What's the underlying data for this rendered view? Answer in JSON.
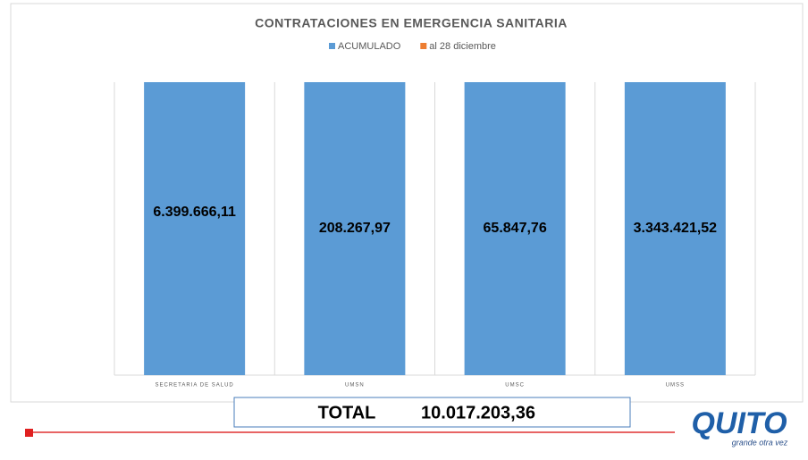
{
  "chart_data": {
    "type": "bar",
    "stacked": "percent",
    "title": "CONTRATACIONES EN EMERGENCIA SANITARIA",
    "categories": [
      "SECRETARIA DE SALUD",
      "UMSN",
      "UMSC",
      "UMSS"
    ],
    "series": [
      {
        "name": "ACUMULADO",
        "color": "#5b9bd5",
        "values": [
          6399666.11,
          208267.97,
          65847.76,
          3343421.52
        ],
        "value_labels": [
          "6.399.666,11",
          "208.267,97",
          "65.847,76",
          "3.343.421,52"
        ]
      },
      {
        "name": "al 28 diciembre",
        "color": "#ed7d31",
        "values": [
          0,
          0,
          0,
          0
        ]
      }
    ],
    "ylim": [
      0,
      100
    ],
    "legend": "top"
  },
  "total": {
    "label": "TOTAL",
    "value_label": "10.017.203,36"
  },
  "logo": {
    "name": "QUITO",
    "tagline": "grande otra vez"
  }
}
